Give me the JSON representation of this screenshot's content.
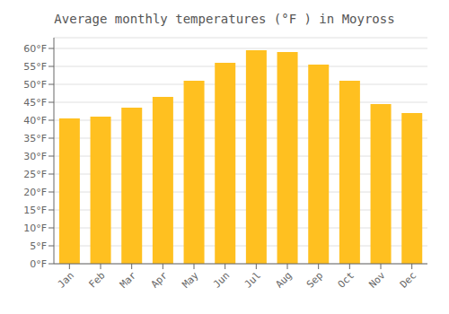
{
  "chart_data": {
    "type": "bar",
    "title": "Average monthly temperatures (°F ) in Moyross",
    "categories": [
      "Jan",
      "Feb",
      "Mar",
      "Apr",
      "May",
      "Jun",
      "Jul",
      "Aug",
      "Sep",
      "Oct",
      "Nov",
      "Dec"
    ],
    "values": [
      40.5,
      41.0,
      43.5,
      46.5,
      51.0,
      56.0,
      59.5,
      59.0,
      55.5,
      51.0,
      44.5,
      42.0
    ],
    "color": "#FFC020",
    "ylim": [
      0,
      63
    ],
    "yticks": [
      {
        "value": 0,
        "label": "0°F"
      },
      {
        "value": 5,
        "label": "5°F"
      },
      {
        "value": 10,
        "label": "10°F"
      },
      {
        "value": 15,
        "label": "15°F"
      },
      {
        "value": 20,
        "label": "20°F"
      },
      {
        "value": 25,
        "label": "25°F"
      },
      {
        "value": 30,
        "label": "30°F"
      },
      {
        "value": 35,
        "label": "35°F"
      },
      {
        "value": 40,
        "label": "40°F"
      },
      {
        "value": 45,
        "label": "45°F"
      },
      {
        "value": 50,
        "label": "50°F"
      },
      {
        "value": 55,
        "label": "55°F"
      },
      {
        "value": 60,
        "label": "60°F"
      }
    ],
    "grid": true
  }
}
